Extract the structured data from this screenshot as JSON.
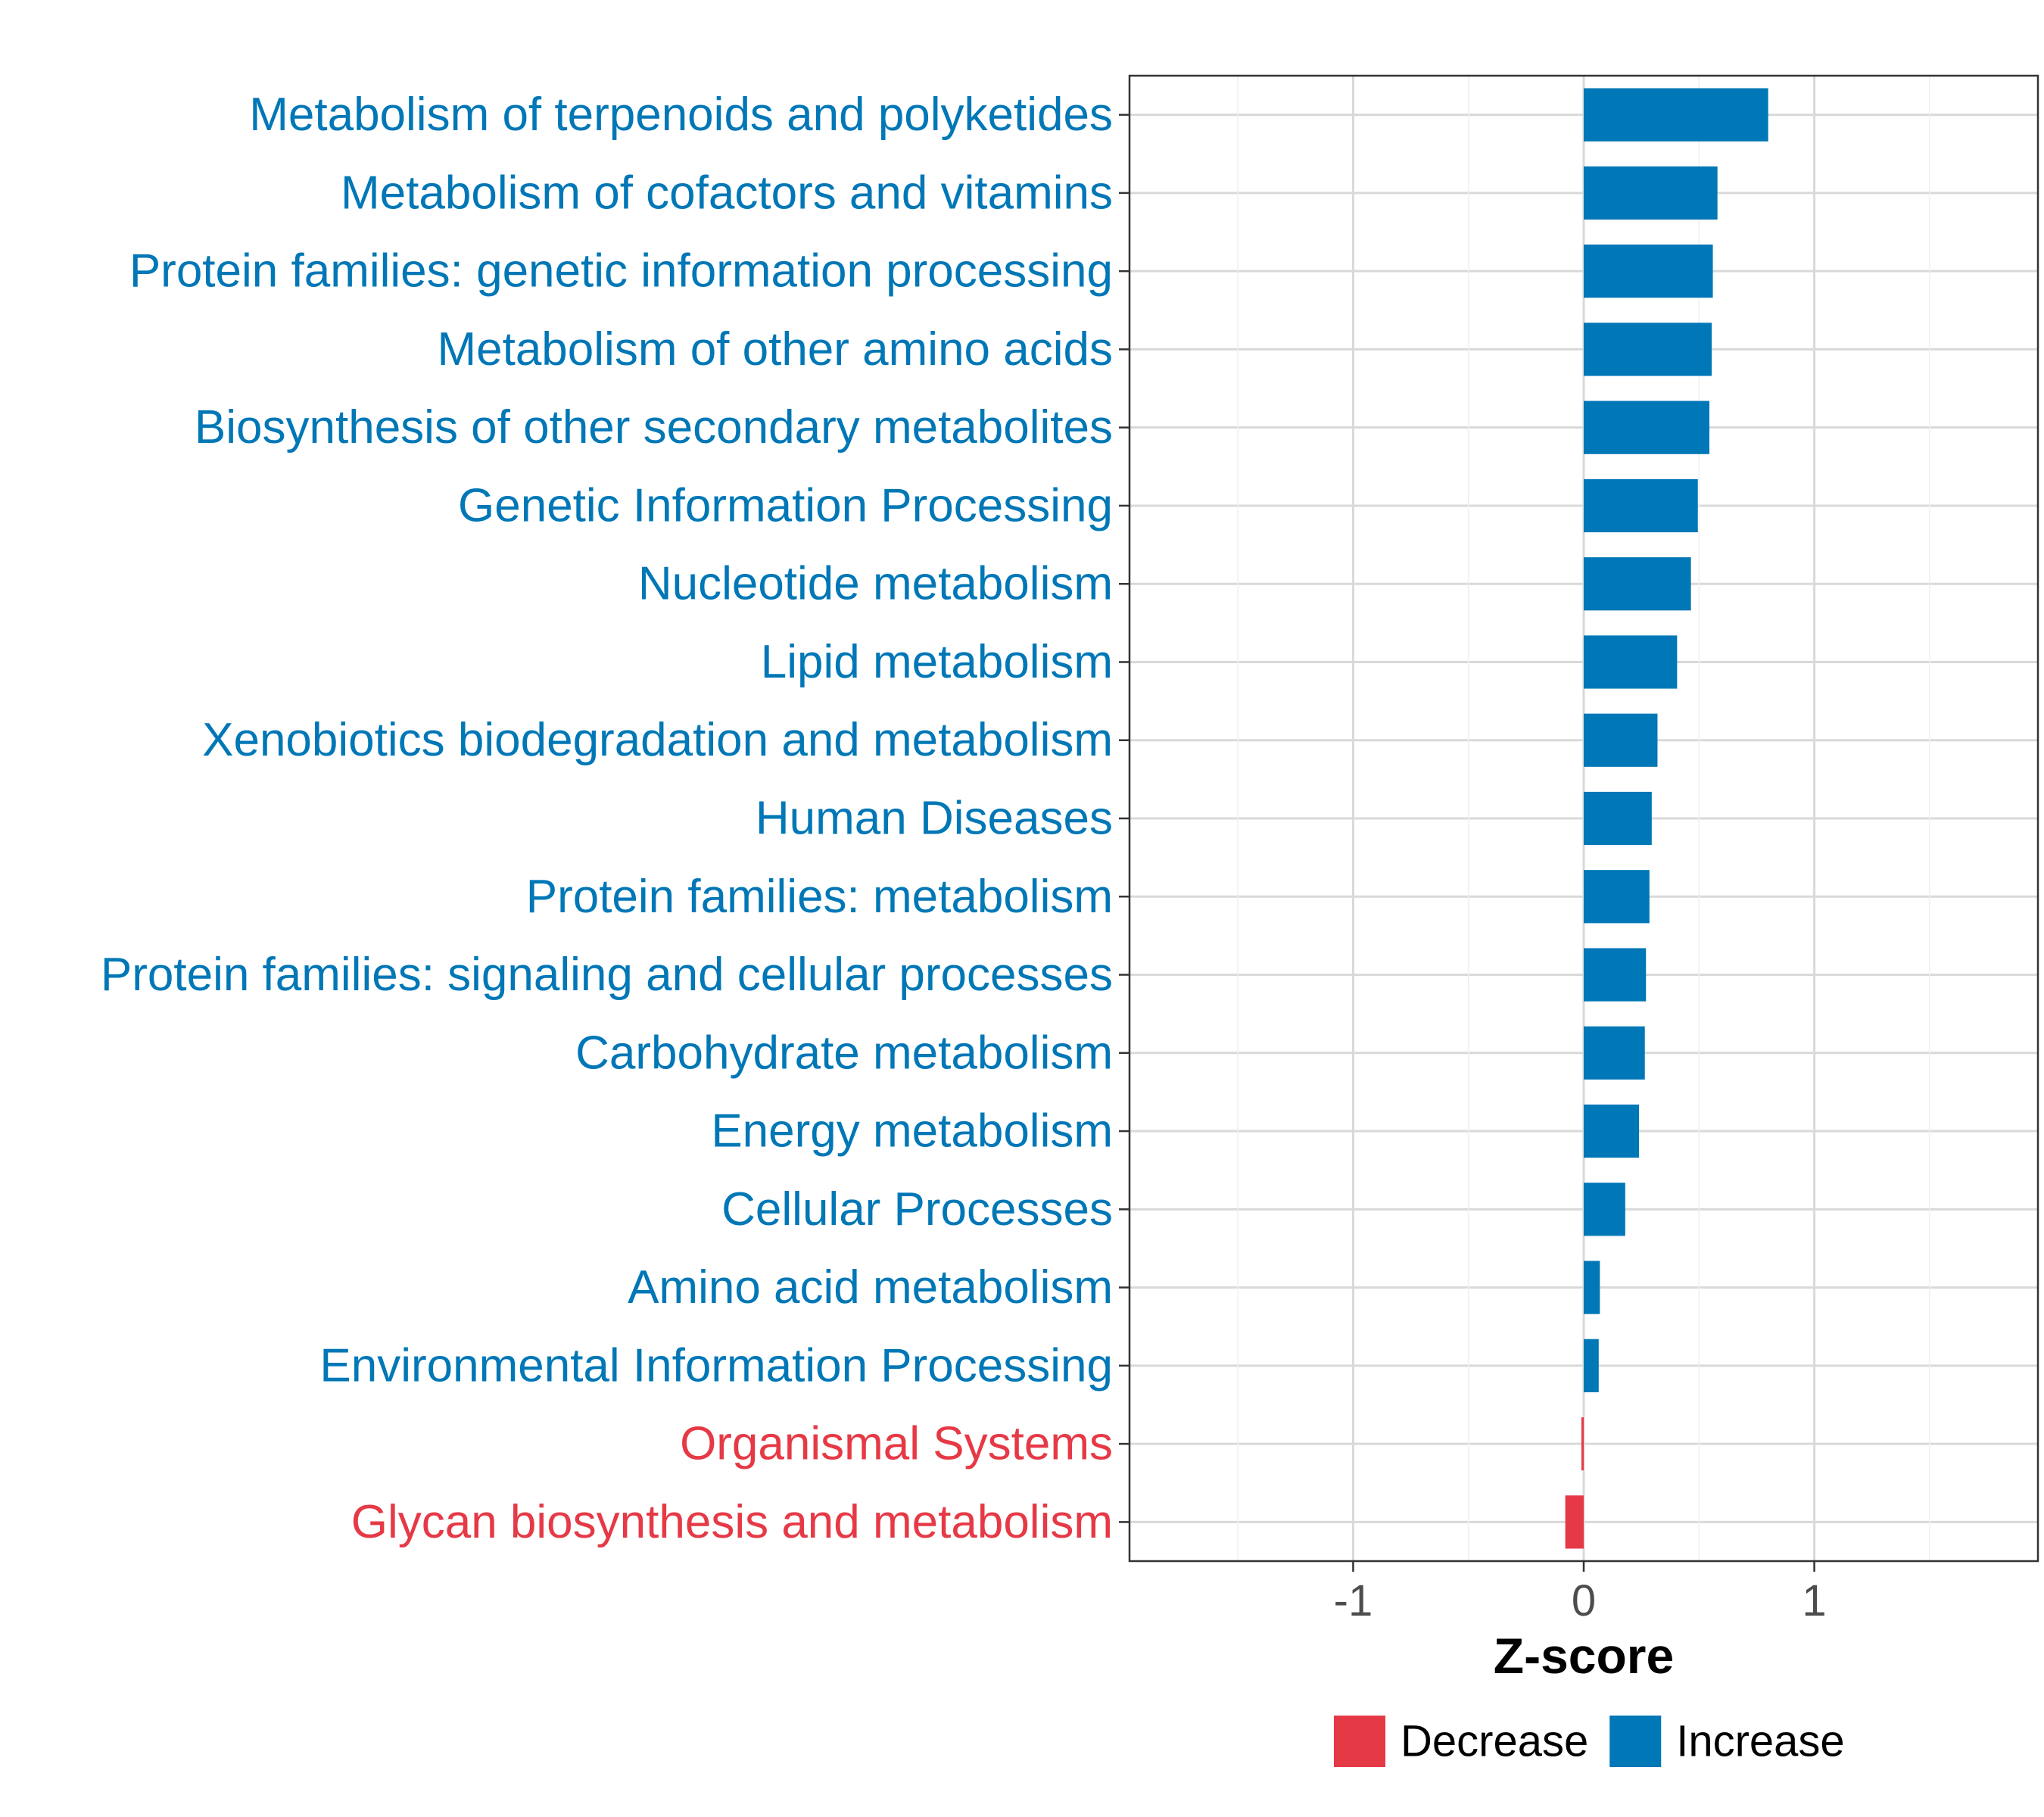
{
  "chart_data": {
    "type": "bar",
    "orientation": "horizontal",
    "title": "",
    "xlabel": "Z-score",
    "ylabel": "",
    "xlim": [
      -1.97,
      1.97
    ],
    "xticks": [
      -1,
      0,
      1
    ],
    "xtick_labels": [
      "-1",
      "0",
      "1"
    ],
    "grid": true,
    "colors": {
      "Decrease": "#E63946",
      "Increase": "#0077B6"
    },
    "categories": [
      "Metabolism of terpenoids and polyketides",
      "Metabolism of cofactors and vitamins",
      "Protein families: genetic information processing",
      "Metabolism of other amino acids",
      "Biosynthesis of other secondary metabolites",
      "Genetic Information Processing",
      "Nucleotide metabolism",
      "Lipid metabolism",
      "Xenobiotics biodegradation and metabolism",
      "Human Diseases",
      "Protein families: metabolism",
      "Protein families: signaling and cellular processes",
      "Carbohydrate metabolism",
      "Energy metabolism",
      "Cellular Processes",
      "Amino acid metabolism",
      "Environmental Information Processing",
      "Organismal Systems",
      "Glycan biosynthesis and metabolism"
    ],
    "values": [
      0.8,
      0.58,
      0.56,
      0.555,
      0.545,
      0.495,
      0.465,
      0.405,
      0.32,
      0.295,
      0.285,
      0.27,
      0.265,
      0.24,
      0.18,
      0.07,
      0.065,
      -0.01,
      -0.08
    ],
    "groups": [
      "Increase",
      "Increase",
      "Increase",
      "Increase",
      "Increase",
      "Increase",
      "Increase",
      "Increase",
      "Increase",
      "Increase",
      "Increase",
      "Increase",
      "Increase",
      "Increase",
      "Increase",
      "Increase",
      "Increase",
      "Decrease",
      "Decrease"
    ],
    "legend": {
      "position": "bottom",
      "entries": [
        {
          "label": "Decrease",
          "color": "#E63946"
        },
        {
          "label": "Increase",
          "color": "#0077B6"
        }
      ]
    }
  }
}
